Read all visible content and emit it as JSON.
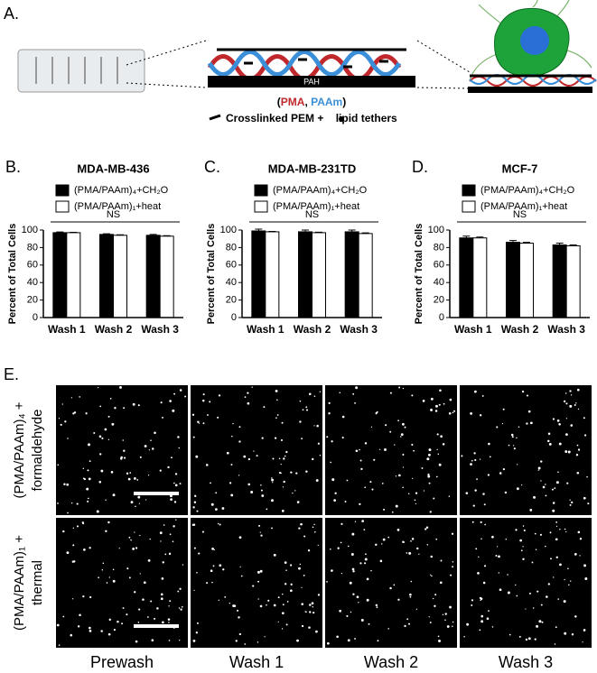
{
  "diagram": {
    "label": "A.",
    "pah": "PAH",
    "paren_open": "(",
    "pma": "PMA",
    "comma": ", ",
    "paam": "PAAm",
    "paren_close": ")",
    "crosslink": "Crosslinked PEM + ",
    "lipid": "lipid tethers"
  },
  "chart_data": [
    {
      "type": "bar",
      "panel_label": "B.",
      "title": "MDA-MB-436",
      "y_label": "Percent of Total Cells",
      "annotation": "NS",
      "categories": [
        "Wash 1",
        "Wash 2",
        "Wash 3"
      ],
      "series": [
        {
          "name": "(PMA/PAAm)₄+CH₂O",
          "color": "#000000",
          "values": [
            97,
            95,
            94
          ],
          "errors": [
            0.8,
            0.8,
            1
          ]
        },
        {
          "name": "(PMA/PAAm)₁+heat",
          "color": "#ffffff",
          "values": [
            97,
            94,
            93
          ],
          "errors": [
            0.4,
            0.6,
            0.6
          ]
        }
      ],
      "ylim": [
        0,
        100
      ],
      "yticks": [
        0,
        20,
        40,
        60,
        80,
        100
      ]
    },
    {
      "type": "bar",
      "panel_label": "C.",
      "title": "MDA-MB-231TD",
      "y_label": "Percent of Total Cells",
      "annotation": "NS",
      "categories": [
        "Wash 1",
        "Wash 2",
        "Wash 3"
      ],
      "series": [
        {
          "name": "(PMA/PAAm)₄+CH₂O",
          "color": "#000000",
          "values": [
            99,
            98,
            98
          ],
          "errors": [
            2,
            2,
            2
          ]
        },
        {
          "name": "(PMA/PAAm)₁+heat",
          "color": "#ffffff",
          "values": [
            98,
            97,
            96
          ],
          "errors": [
            0.5,
            0.5,
            0.8
          ]
        }
      ],
      "ylim": [
        0,
        100
      ],
      "yticks": [
        0,
        20,
        40,
        60,
        80,
        100
      ]
    },
    {
      "type": "bar",
      "panel_label": "D.",
      "title": "MCF-7",
      "y_label": "Percent of Total Cells",
      "annotation": "NS",
      "categories": [
        "Wash 1",
        "Wash 2",
        "Wash 3"
      ],
      "series": [
        {
          "name": "(PMA/PAAm)₄+CH₂O",
          "color": "#000000",
          "values": [
            91,
            86,
            83
          ],
          "errors": [
            2,
            2,
            2
          ]
        },
        {
          "name": "(PMA/PAAm)₁+heat",
          "color": "#ffffff",
          "values": [
            91,
            85,
            82
          ],
          "errors": [
            1,
            1,
            1
          ]
        }
      ],
      "ylim": [
        0,
        100
      ],
      "yticks": [
        0,
        20,
        40,
        60,
        80,
        100
      ]
    }
  ],
  "panel_e": {
    "label": "E.",
    "rows": [
      [
        "(PMA/PAAm)₄ +",
        "formaldehyde"
      ],
      [
        "(PMA/PAAm)₁ +",
        "thermal"
      ]
    ],
    "columns": [
      "Prewash",
      "Wash 1",
      "Wash 2",
      "Wash 3"
    ]
  }
}
